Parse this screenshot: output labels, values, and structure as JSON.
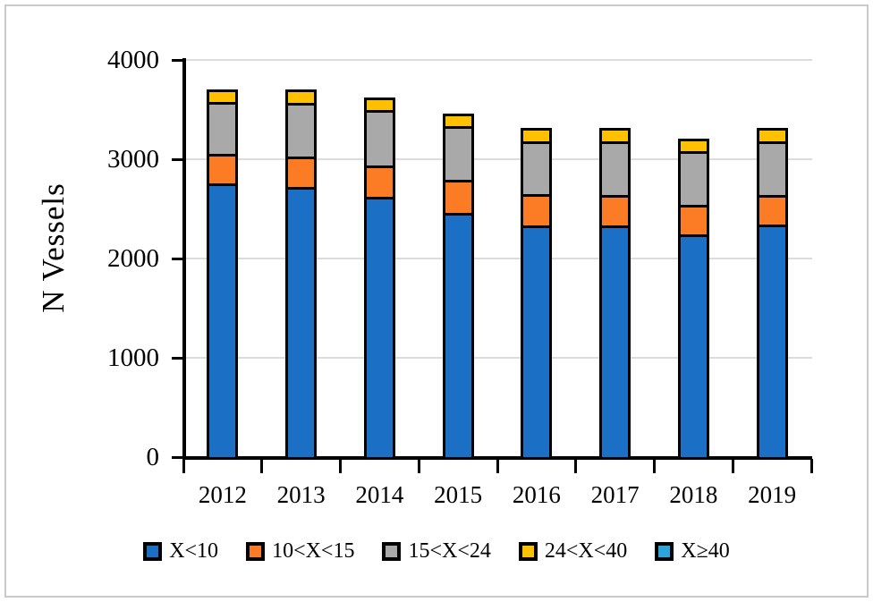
{
  "figure": {
    "background": "#ffffff",
    "frame_color": "#c9c9c9"
  },
  "chart_data": {
    "type": "bar",
    "stacked": true,
    "title": "",
    "xlabel": "",
    "ylabel": "N Vessels",
    "categories": [
      "2012",
      "2013",
      "2014",
      "2015",
      "2016",
      "2017",
      "2018",
      "2019"
    ],
    "series": [
      {
        "name": "X<10",
        "color": "#1b70c5",
        "values": [
          2760,
          2720,
          2620,
          2460,
          2330,
          2330,
          2240,
          2340
        ]
      },
      {
        "name": "10<X<15",
        "color": "#fb7c24",
        "values": [
          290,
          310,
          320,
          330,
          320,
          310,
          300,
          300
        ]
      },
      {
        "name": "15<X<24",
        "color": "#a9a9a9",
        "values": [
          530,
          540,
          560,
          540,
          530,
          540,
          540,
          540
        ]
      },
      {
        "name": "24<X<40",
        "color": "#ffc000",
        "values": [
          120,
          130,
          120,
          130,
          140,
          140,
          130,
          140
        ]
      },
      {
        "name": "X≥40",
        "color": "#2ba5dc",
        "values": [
          0,
          0,
          0,
          0,
          0,
          0,
          0,
          0
        ]
      }
    ],
    "totals": [
      3700,
      3700,
      3620,
      3460,
      3320,
      3320,
      3210,
      3320
    ],
    "ylim": [
      0,
      4000
    ],
    "yticks": [
      0,
      1000,
      2000,
      3000,
      4000
    ],
    "grid": true,
    "gridline_color": "#dcdcdc",
    "axis_color": "#000000",
    "legend_position": "bottom"
  }
}
